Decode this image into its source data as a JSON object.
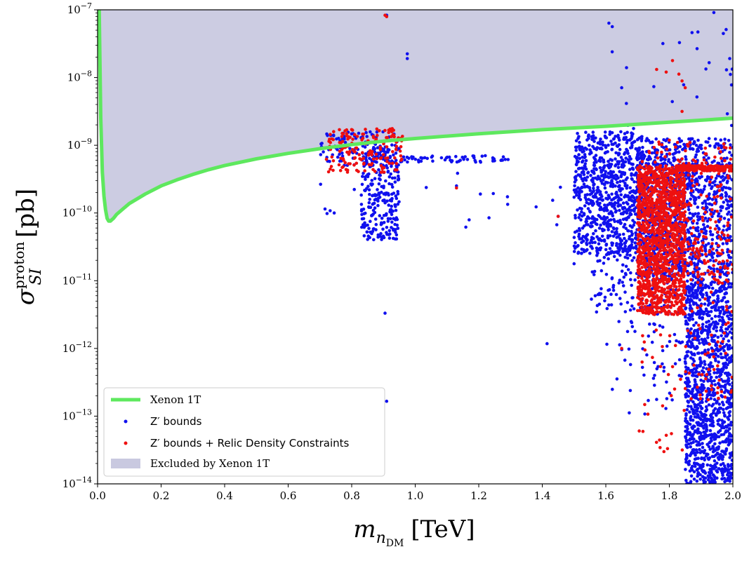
{
  "chart_data": {
    "type": "scatter",
    "xlabel": {
      "main": "m",
      "sub": "n",
      "subsub": "DM",
      "unit": "[TeV]"
    },
    "ylabel": {
      "main": "σ",
      "sub": "SI",
      "sup": "proton",
      "unit": "[pb]"
    },
    "xlim": [
      0.0,
      2.0
    ],
    "ylim_exp": [
      -14,
      -7
    ],
    "y_scale": "log",
    "grid": false,
    "legend_position": "lower-left",
    "x_ticks": [
      "0.0",
      "0.2",
      "0.4",
      "0.6",
      "0.8",
      "1.0",
      "1.2",
      "1.4",
      "1.6",
      "1.8",
      "2.0"
    ],
    "y_ticks": [
      {
        "base": "10",
        "exp": "−14",
        "value": -14
      },
      {
        "base": "10",
        "exp": "−13",
        "value": -13
      },
      {
        "base": "10",
        "exp": "−12",
        "value": -12
      },
      {
        "base": "10",
        "exp": "−11",
        "value": -11
      },
      {
        "base": "10",
        "exp": "−10",
        "value": -10
      },
      {
        "base": "10",
        "exp": "−9",
        "value": -9
      },
      {
        "base": "10",
        "exp": "−8",
        "value": -8
      },
      {
        "base": "10",
        "exp": "−7",
        "value": -7
      }
    ],
    "xenon_curve": {
      "name": "Xenon 1T",
      "color": "#5ee85e",
      "points": [
        [
          0.005,
          -7.0
        ],
        [
          0.01,
          -8.6
        ],
        [
          0.015,
          -9.4
        ],
        [
          0.02,
          -9.75
        ],
        [
          0.025,
          -9.95
        ],
        [
          0.03,
          -10.08
        ],
        [
          0.035,
          -10.12
        ],
        [
          0.04,
          -10.12
        ],
        [
          0.05,
          -10.08
        ],
        [
          0.06,
          -10.02
        ],
        [
          0.08,
          -9.94
        ],
        [
          0.1,
          -9.86
        ],
        [
          0.15,
          -9.72
        ],
        [
          0.2,
          -9.6
        ],
        [
          0.25,
          -9.51
        ],
        [
          0.3,
          -9.43
        ],
        [
          0.35,
          -9.36
        ],
        [
          0.4,
          -9.3
        ],
        [
          0.5,
          -9.2
        ],
        [
          0.6,
          -9.12
        ],
        [
          0.7,
          -9.05
        ],
        [
          0.8,
          -8.99
        ],
        [
          0.9,
          -8.94
        ],
        [
          1.0,
          -8.9
        ],
        [
          1.2,
          -8.83
        ],
        [
          1.4,
          -8.77
        ],
        [
          1.6,
          -8.72
        ],
        [
          1.8,
          -8.66
        ],
        [
          2.0,
          -8.6
        ]
      ]
    },
    "excluded_region": {
      "name": "Excluded by Xenon 1T",
      "color": "#c9c9e0"
    },
    "series": [
      {
        "name": "Z′ bounds",
        "color": "#1010ee",
        "clusters": [
          {
            "x": [
              0.7,
              0.95
            ],
            "y": [
              -9.3,
              -8.8
            ],
            "n": 120
          },
          {
            "x": [
              0.83,
              0.95
            ],
            "y": [
              -10.4,
              -9.0
            ],
            "n": 260
          },
          {
            "x": [
              0.95,
              1.3
            ],
            "y": [
              -9.25,
              -9.15
            ],
            "n": 60
          },
          {
            "x": [
              1.5,
              1.72
            ],
            "y": [
              -10.6,
              -8.8
            ],
            "n": 700
          },
          {
            "x": [
              1.55,
              1.9
            ],
            "y": [
              -11.5,
              -9.2
            ],
            "n": 500
          },
          {
            "x": [
              1.72,
              2.0
            ],
            "y": [
              -11.0,
              -8.9
            ],
            "n": 900
          },
          {
            "x": [
              1.85,
              2.0
            ],
            "y": [
              -14.0,
              -11.0
            ],
            "n": 1100
          },
          {
            "x": [
              1.6,
              1.95
            ],
            "y": [
              -13.0,
              -11.3
            ],
            "n": 90
          },
          {
            "x": [
              1.6,
              2.0
            ],
            "y": [
              -9.0,
              -7.0
            ],
            "n": 25
          },
          {
            "x": [
              0.7,
              1.5
            ],
            "y": [
              -10.4,
              -9.4
            ],
            "n": 25
          }
        ],
        "isolated": [
          [
            0.91,
            -7.08
          ],
          [
            0.975,
            -7.65
          ],
          [
            0.975,
            -7.72
          ],
          [
            0.905,
            -11.48
          ],
          [
            0.91,
            -12.78
          ],
          [
            1.415,
            -11.93
          ],
          [
            1.13,
            -9.6
          ],
          [
            1.45,
            -10.05
          ],
          [
            1.5,
            -10.75
          ],
          [
            0.745,
            -10.0
          ],
          [
            1.94,
            -7.04
          ],
          [
            1.97,
            -7.35
          ],
          [
            1.99,
            -7.72
          ],
          [
            1.62,
            -7.62
          ],
          [
            1.65,
            -8.15
          ]
        ]
      },
      {
        "name": "Z′ bounds + Relic Density Constraints",
        "color": "#ee1010",
        "clusters": [
          {
            "x": [
              0.72,
              0.96
            ],
            "y": [
              -9.4,
              -8.75
            ],
            "n": 160
          },
          {
            "x": [
              1.7,
              1.85
            ],
            "y": [
              -11.5,
              -9.3
            ],
            "n": 1300
          },
          {
            "x": [
              1.82,
              2.0
            ],
            "y": [
              -9.38,
              -9.3
            ],
            "n": 200
          },
          {
            "x": [
              1.7,
              2.0
            ],
            "y": [
              -11.0,
              -8.9
            ],
            "n": 250
          },
          {
            "x": [
              1.85,
              2.0
            ],
            "y": [
              -12.8,
              -10.0
            ],
            "n": 110
          },
          {
            "x": [
              1.7,
              1.85
            ],
            "y": [
              -13.6,
              -11.6
            ],
            "n": 30
          }
        ],
        "isolated": [
          [
            0.905,
            -7.08
          ],
          [
            0.91,
            -7.1
          ],
          [
            1.13,
            -9.63
          ],
          [
            1.45,
            -10.05
          ],
          [
            1.65,
            -12.0
          ],
          [
            1.76,
            -7.88
          ],
          [
            1.79,
            -7.92
          ],
          [
            1.81,
            -7.75
          ],
          [
            1.84,
            -8.05
          ],
          [
            1.85,
            -8.15
          ],
          [
            1.84,
            -8.5
          ],
          [
            1.83,
            -7.95
          ]
        ]
      }
    ]
  }
}
